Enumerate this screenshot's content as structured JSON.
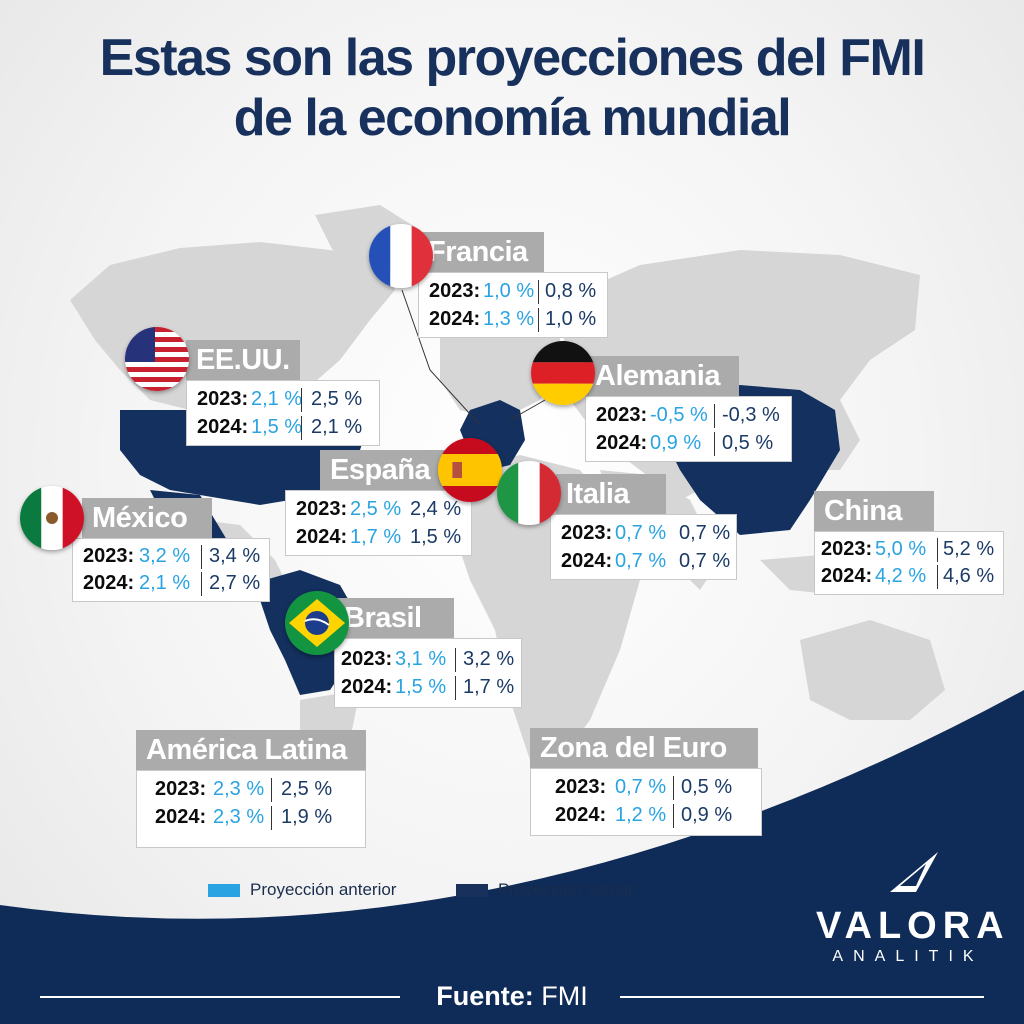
{
  "title": {
    "line1": "Estas son las proyecciones del FMI",
    "line2": "de la economía mundial"
  },
  "colors": {
    "prev": "#29a3e1",
    "curr": "#1b3a66",
    "highlight_country": "#13305e",
    "land": "#d6d6d6",
    "label_bg": "#ababab",
    "footer_bg": "#0f2b57"
  },
  "countries": [
    {
      "id": "francia",
      "name": "Francia",
      "y2023_label": "2023:",
      "y2023_prev": "1,0 %",
      "y2023_curr": "0,8 %",
      "y2024_label": "2024:",
      "y2024_prev": "1,3 %",
      "y2024_curr": "1,0 %",
      "flag": "france-flag"
    },
    {
      "id": "eeuu",
      "name": "EE.UU.",
      "y2023_label": "2023:",
      "y2023_prev": "2,1 %",
      "y2023_curr": "2,5 %",
      "y2024_label": "2024:",
      "y2024_prev": "1,5 %",
      "y2024_curr": "2,1 %",
      "flag": "usa-flag"
    },
    {
      "id": "alemania",
      "name": "Alemania",
      "y2023_label": "2023:",
      "y2023_prev": "-0,5 %",
      "y2023_curr": "-0,3 %",
      "y2024_label": "2024:",
      "y2024_prev": "0,9 %",
      "y2024_curr": "0,5 %",
      "flag": "germany-flag"
    },
    {
      "id": "espana",
      "name": "España",
      "y2023_label": "2023:",
      "y2023_prev": "2,5 %",
      "y2023_curr": "2,4 %",
      "y2024_label": "2024:",
      "y2024_prev": "1,7 %",
      "y2024_curr": "1,5 %",
      "flag": "spain-flag"
    },
    {
      "id": "italia",
      "name": "Italia",
      "y2023_label": "2023:",
      "y2023_prev": "0,7 %",
      "y2023_curr": "0,7 %",
      "y2024_label": "2024:",
      "y2024_prev": "0,7 %",
      "y2024_curr": "0,7 %",
      "flag": "italy-flag"
    },
    {
      "id": "mexico",
      "name": "México",
      "y2023_label": "2023:",
      "y2023_prev": "3,2 %",
      "y2023_curr": "3,4 %",
      "y2024_label": "2024:",
      "y2024_prev": "2,1 %",
      "y2024_curr": "2,7 %",
      "flag": "mexico-flag"
    },
    {
      "id": "china",
      "name": "China",
      "y2023_label": "2023:",
      "y2023_prev": "5,0 %",
      "y2023_curr": "5,2 %",
      "y2024_label": "2024:",
      "y2024_prev": "4,2 %",
      "y2024_curr": "4,6  %",
      "flag": ""
    },
    {
      "id": "brasil",
      "name": "Brasil",
      "y2023_label": "2023:",
      "y2023_prev": "3,1 %",
      "y2023_curr": "3,2 %",
      "y2024_label": "2024:",
      "y2024_prev": "1,5 %",
      "y2024_curr": "1,7 %",
      "flag": "brazil-flag"
    },
    {
      "id": "latam",
      "name": "América Latina",
      "y2023_label": "2023:",
      "y2023_prev": "2,3 %",
      "y2023_curr": "2,5 %",
      "y2024_label": "2024:",
      "y2024_prev": "2,3 %",
      "y2024_curr": "1,9 %",
      "flag": ""
    },
    {
      "id": "euro",
      "name": "Zona del Euro",
      "y2023_label": "2023:",
      "y2023_prev": "0,7 %",
      "y2023_curr": "0,5 %",
      "y2024_label": "2024:",
      "y2024_prev": "1,2 %",
      "y2024_curr": "0,9 %",
      "flag": ""
    }
  ],
  "legend": {
    "prev_label": "Proyección anterior",
    "curr_label": "Proyección actual"
  },
  "brand": {
    "name": "VALORA",
    "sub": "ANALITIK",
    "icon": "valora-logo-icon"
  },
  "footer": {
    "source_label": "Fuente:",
    "source_value": "FMI"
  }
}
